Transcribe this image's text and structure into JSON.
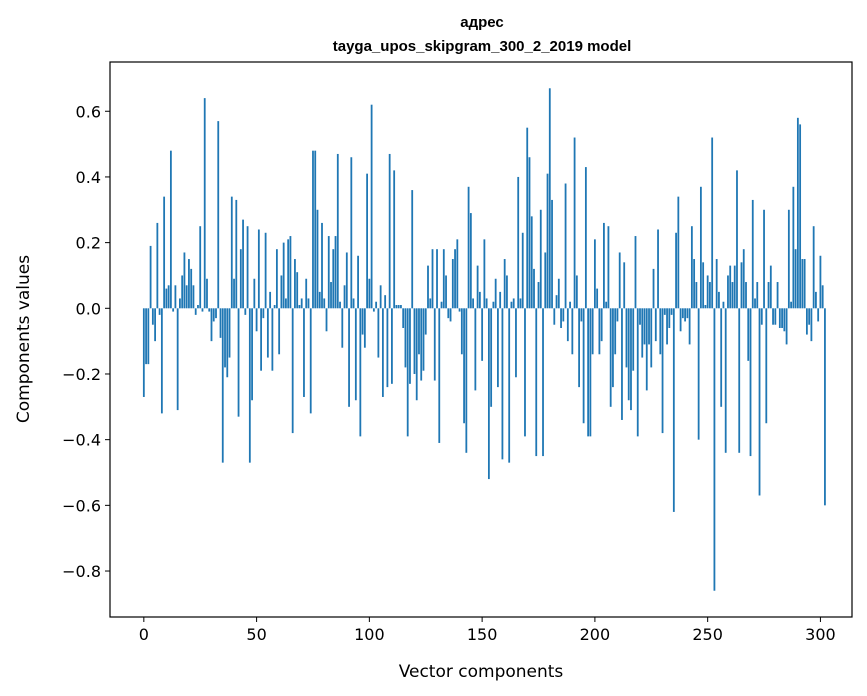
{
  "chart_data": {
    "type": "bar",
    "title_line1": "адрес",
    "title_line2": "tayga_upos_skipgram_300_2_2019 model",
    "xlabel": "Vector components",
    "ylabel": "Components values",
    "xlim": [
      -15,
      314
    ],
    "ylim": [
      -0.94,
      0.75
    ],
    "xticks": [
      0,
      50,
      100,
      150,
      200,
      250,
      300
    ],
    "xtick_labels": [
      "0",
      "50",
      "100",
      "150",
      "200",
      "250",
      "300"
    ],
    "yticks": [
      -0.8,
      -0.6,
      -0.4,
      -0.2,
      0.0,
      0.2,
      0.4,
      0.6
    ],
    "ytick_labels": [
      "−0.8",
      "−0.6",
      "−0.4",
      "−0.2",
      "0.0",
      "0.2",
      "0.4",
      "0.6"
    ],
    "bar_color": "#1f77b4",
    "values": [
      -0.27,
      -0.17,
      -0.17,
      0.19,
      -0.05,
      -0.1,
      0.26,
      -0.02,
      -0.32,
      0.34,
      0.06,
      0.07,
      0.48,
      -0.01,
      0.07,
      -0.31,
      0.03,
      0.1,
      0.17,
      0.07,
      0.15,
      0.12,
      0.07,
      -0.02,
      0.01,
      0.25,
      -0.01,
      0.64,
      0.09,
      -0.01,
      -0.1,
      -0.04,
      -0.03,
      0.57,
      -0.09,
      -0.47,
      -0.18,
      -0.21,
      -0.15,
      0.34,
      0.09,
      0.33,
      -0.33,
      0.18,
      0.27,
      -0.02,
      0.25,
      -0.47,
      -0.28,
      0.09,
      -0.07,
      0.24,
      -0.19,
      -0.03,
      0.23,
      -0.15,
      0.05,
      -0.19,
      0.01,
      0.18,
      -0.14,
      0.1,
      0.2,
      0.03,
      0.21,
      0.22,
      -0.38,
      0.15,
      0.11,
      0.01,
      0.03,
      -0.27,
      0.09,
      0.03,
      -0.32,
      0.48,
      0.48,
      0.3,
      0.05,
      0.26,
      0.03,
      -0.07,
      0.22,
      0.08,
      0.18,
      0.22,
      0.47,
      0.02,
      -0.12,
      0.07,
      0.17,
      -0.3,
      0.46,
      0.03,
      -0.28,
      0.16,
      -0.39,
      -0.08,
      -0.12,
      0.41,
      0.09,
      0.62,
      -0.01,
      0.02,
      -0.15,
      0.07,
      -0.27,
      0.04,
      -0.24,
      0.47,
      -0.23,
      0.42,
      0.01,
      0.01,
      0.01,
      -0.06,
      -0.18,
      -0.39,
      -0.23,
      0.36,
      -0.2,
      -0.28,
      -0.14,
      -0.22,
      -0.19,
      -0.08,
      0.13,
      0.03,
      0.18,
      -0.22,
      0.18,
      -0.41,
      0.02,
      0.18,
      0.1,
      -0.03,
      -0.04,
      0.15,
      0.18,
      0.21,
      -0.01,
      -0.14,
      -0.35,
      -0.44,
      0.37,
      0.29,
      0.03,
      -0.25,
      0.13,
      0.05,
      -0.16,
      0.21,
      0.03,
      -0.52,
      -0.3,
      0.02,
      0.09,
      -0.24,
      0.05,
      -0.46,
      0.15,
      0.1,
      -0.47,
      0.02,
      0.03,
      -0.21,
      0.4,
      0.03,
      0.23,
      -0.39,
      0.55,
      0.46,
      0.28,
      0.12,
      -0.45,
      0.08,
      0.3,
      -0.45,
      0.17,
      0.41,
      0.67,
      0.33,
      -0.05,
      0.04,
      0.09,
      -0.06,
      -0.04,
      0.38,
      -0.1,
      0.02,
      -0.14,
      0.52,
      0.1,
      -0.24,
      -0.04,
      -0.35,
      0.43,
      -0.39,
      -0.39,
      -0.14,
      0.21,
      0.06,
      -0.14,
      -0.1,
      0.26,
      0.02,
      0.25,
      -0.3,
      -0.24,
      -0.14,
      -0.04,
      0.17,
      -0.34,
      0.14,
      -0.18,
      -0.28,
      -0.31,
      -0.19,
      0.22,
      -0.39,
      -0.05,
      -0.15,
      -0.11,
      -0.25,
      -0.11,
      -0.18,
      0.12,
      -0.1,
      0.24,
      -0.14,
      -0.38,
      -0.02,
      -0.11,
      -0.06,
      -0.02,
      -0.62,
      0.23,
      0.34,
      -0.07,
      -0.03,
      -0.04,
      -0.03,
      -0.11,
      0.25,
      0.15,
      0.08,
      -0.4,
      0.37,
      0.14,
      0.01,
      0.1,
      0.08,
      0.52,
      -0.86,
      0.15,
      0.05,
      -0.3,
      0.02,
      -0.44,
      0.1,
      0.13,
      0.08,
      0.13,
      0.42,
      -0.44,
      0.14,
      0.18,
      0.08,
      -0.16,
      -0.45,
      0.33,
      0.03,
      0.08,
      -0.57,
      -0.05,
      0.3,
      -0.35,
      0.08,
      0.13,
      -0.05,
      -0.05,
      0.08,
      -0.06,
      -0.06,
      -0.07,
      -0.11,
      0.3,
      0.02,
      0.37,
      0.18,
      0.58,
      0.56,
      0.15,
      0.15,
      -0.08,
      -0.05,
      -0.1,
      0.25,
      0.05,
      -0.04,
      0.16,
      0.07,
      -0.6
    ]
  }
}
